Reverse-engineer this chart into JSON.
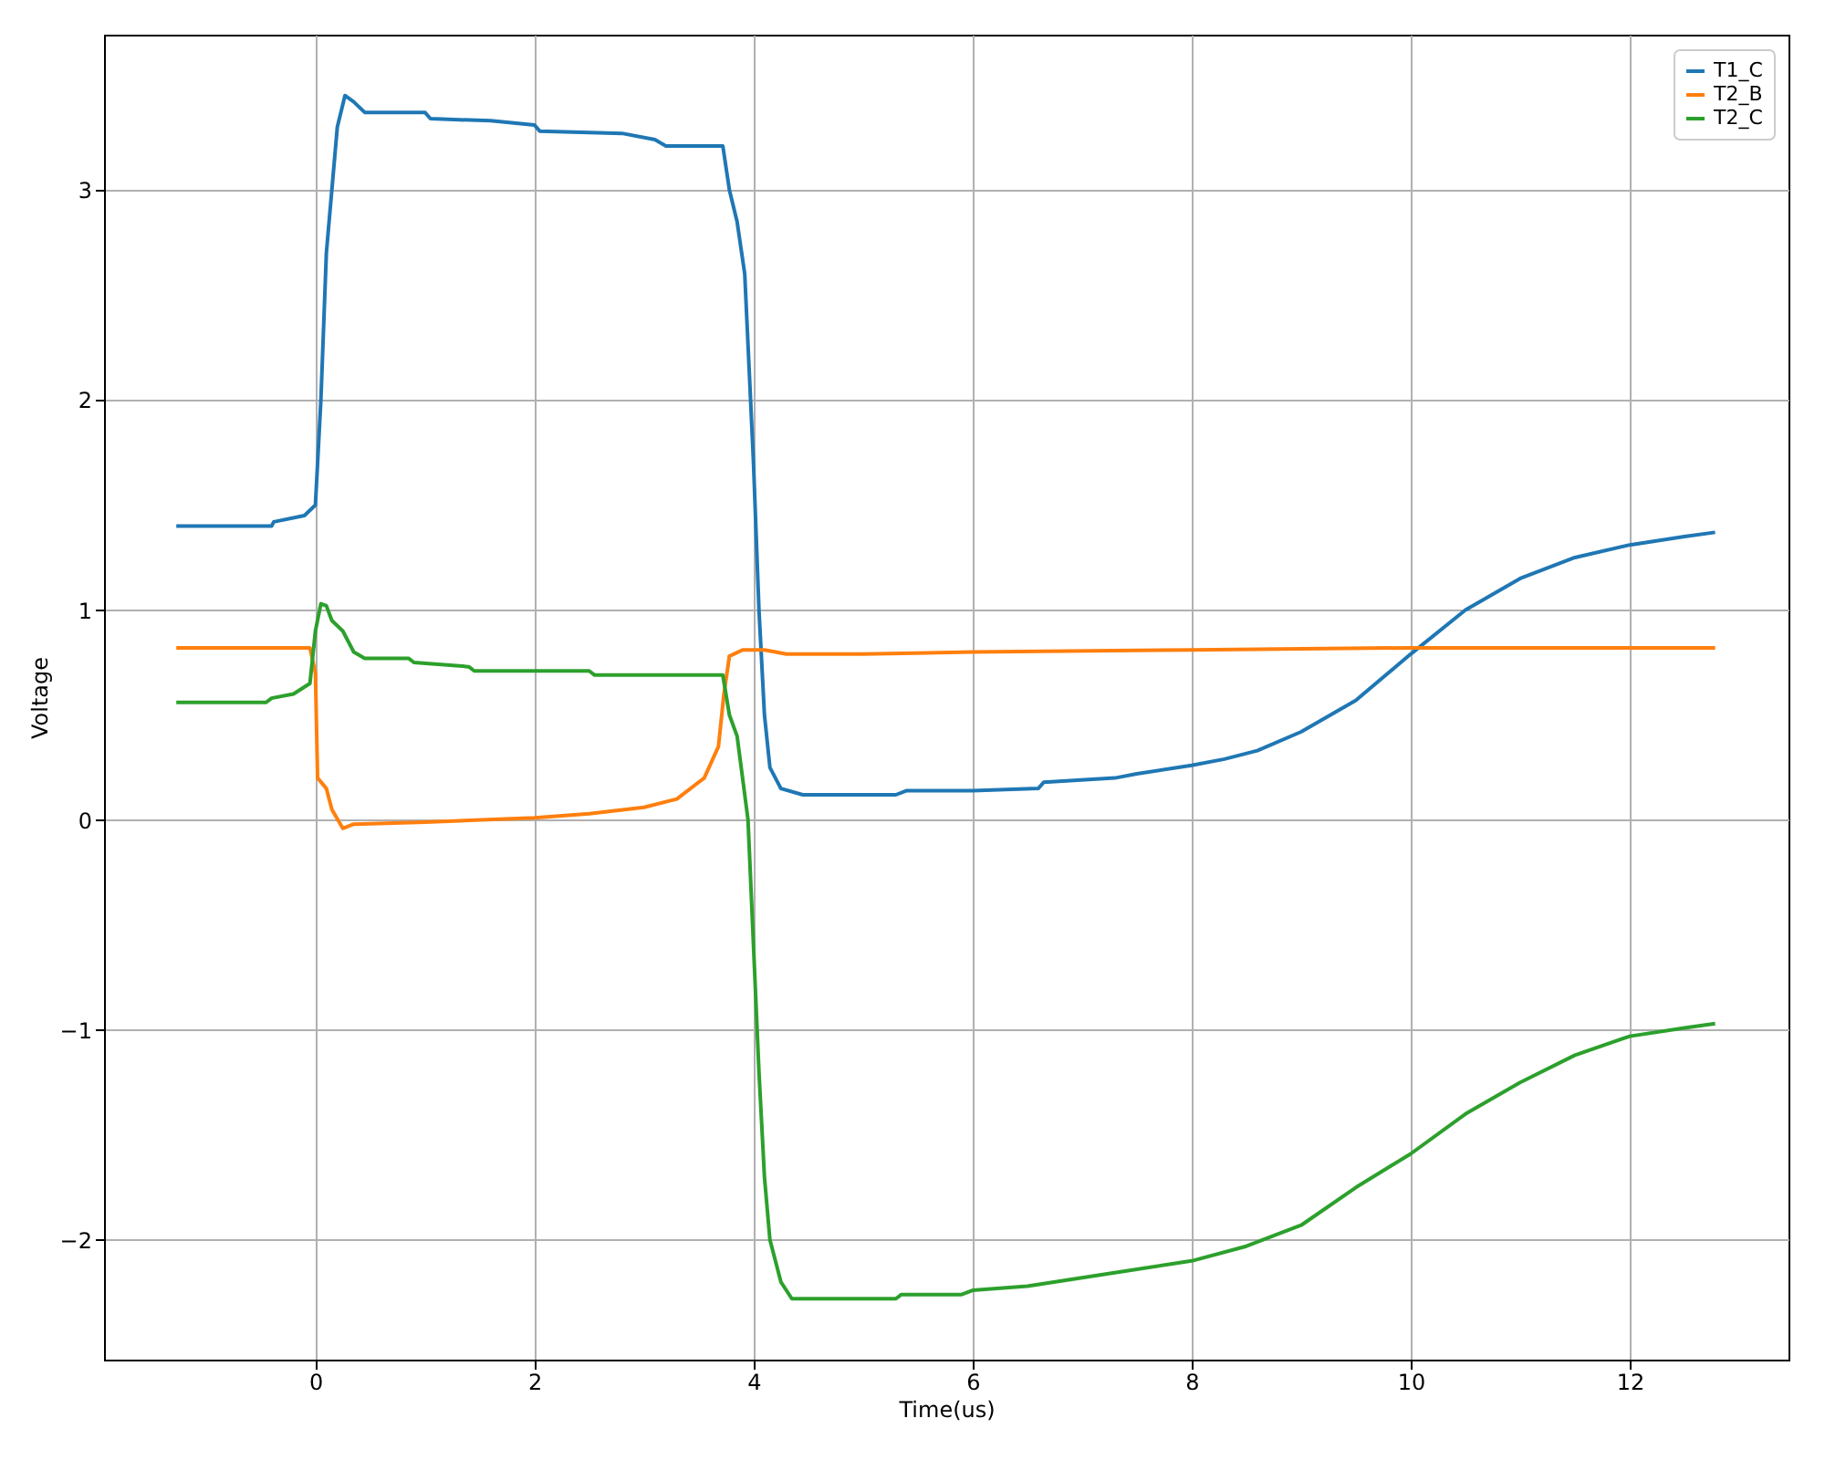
{
  "chart_data": {
    "type": "line",
    "xlabel": "Time(us)",
    "ylabel": "Voltage",
    "xlim": [
      -1.93,
      13.45
    ],
    "ylim": [
      -2.57,
      3.74
    ],
    "xticks": [
      0,
      2,
      4,
      6,
      8,
      10,
      12
    ],
    "yticks": [
      -2,
      -1,
      0,
      1,
      2,
      3
    ],
    "grid": true,
    "legend": "top right",
    "line_style": "solid",
    "marker": "none",
    "series": [
      {
        "name": "T1_C",
        "color": "#1f77b4",
        "x": [
          -1.27,
          -0.4,
          -0.38,
          -0.1,
          0.0,
          0.05,
          0.1,
          0.2,
          0.27,
          0.35,
          0.45,
          1.0,
          1.05,
          1.6,
          2.0,
          2.05,
          2.8,
          3.1,
          3.2,
          3.72,
          3.78,
          3.85,
          3.92,
          4.0,
          4.05,
          4.1,
          4.15,
          4.25,
          4.45,
          5.3,
          5.4,
          6.0,
          6.6,
          6.65,
          7.3,
          7.5,
          8.0,
          8.3,
          8.6,
          9.0,
          9.5,
          10.0,
          10.5,
          11.0,
          11.5,
          12.0,
          12.5,
          12.78
        ],
        "values": [
          1.4,
          1.4,
          1.42,
          1.45,
          1.5,
          2.0,
          2.7,
          3.3,
          3.45,
          3.42,
          3.37,
          3.37,
          3.34,
          3.33,
          3.31,
          3.28,
          3.27,
          3.24,
          3.21,
          3.21,
          3.0,
          2.85,
          2.6,
          1.7,
          1.0,
          0.5,
          0.25,
          0.15,
          0.12,
          0.12,
          0.14,
          0.14,
          0.15,
          0.18,
          0.2,
          0.22,
          0.26,
          0.29,
          0.33,
          0.42,
          0.57,
          0.79,
          1.0,
          1.15,
          1.25,
          1.31,
          1.35,
          1.37
        ]
      },
      {
        "name": "T2_B",
        "color": "#ff7f0e",
        "x": [
          -1.27,
          -0.05,
          0.0,
          0.02,
          0.1,
          0.15,
          0.25,
          0.35,
          1.0,
          2.0,
          2.5,
          3.0,
          3.3,
          3.55,
          3.68,
          3.73,
          3.78,
          3.9,
          4.1,
          4.3,
          5.0,
          6.0,
          8.0,
          10.0,
          12.78
        ],
        "values": [
          0.82,
          0.82,
          0.7,
          0.2,
          0.15,
          0.05,
          -0.04,
          -0.02,
          -0.01,
          0.01,
          0.03,
          0.06,
          0.1,
          0.2,
          0.35,
          0.6,
          0.78,
          0.81,
          0.81,
          0.79,
          0.79,
          0.8,
          0.81,
          0.82,
          0.82
        ]
      },
      {
        "name": "T2_C",
        "color": "#2ca02c",
        "x": [
          -1.27,
          -0.45,
          -0.4,
          -0.2,
          -0.05,
          0.0,
          0.05,
          0.1,
          0.15,
          0.25,
          0.35,
          0.45,
          0.85,
          0.9,
          1.4,
          1.45,
          2.5,
          2.55,
          3.72,
          3.78,
          3.85,
          3.95,
          4.0,
          4.05,
          4.1,
          4.15,
          4.25,
          4.35,
          5.3,
          5.35,
          5.9,
          6.0,
          6.5,
          7.0,
          7.5,
          8.0,
          8.5,
          9.0,
          9.5,
          10.0,
          10.5,
          11.0,
          11.5,
          12.0,
          12.5,
          12.78
        ],
        "values": [
          0.56,
          0.56,
          0.58,
          0.6,
          0.65,
          0.9,
          1.03,
          1.02,
          0.95,
          0.9,
          0.8,
          0.77,
          0.77,
          0.75,
          0.73,
          0.71,
          0.71,
          0.69,
          0.69,
          0.5,
          0.4,
          0.0,
          -0.6,
          -1.2,
          -1.7,
          -2.0,
          -2.2,
          -2.28,
          -2.28,
          -2.26,
          -2.26,
          -2.24,
          -2.22,
          -2.18,
          -2.14,
          -2.1,
          -2.03,
          -1.93,
          -1.75,
          -1.59,
          -1.4,
          -1.25,
          -1.12,
          -1.03,
          -0.99,
          -0.97
        ]
      }
    ]
  }
}
